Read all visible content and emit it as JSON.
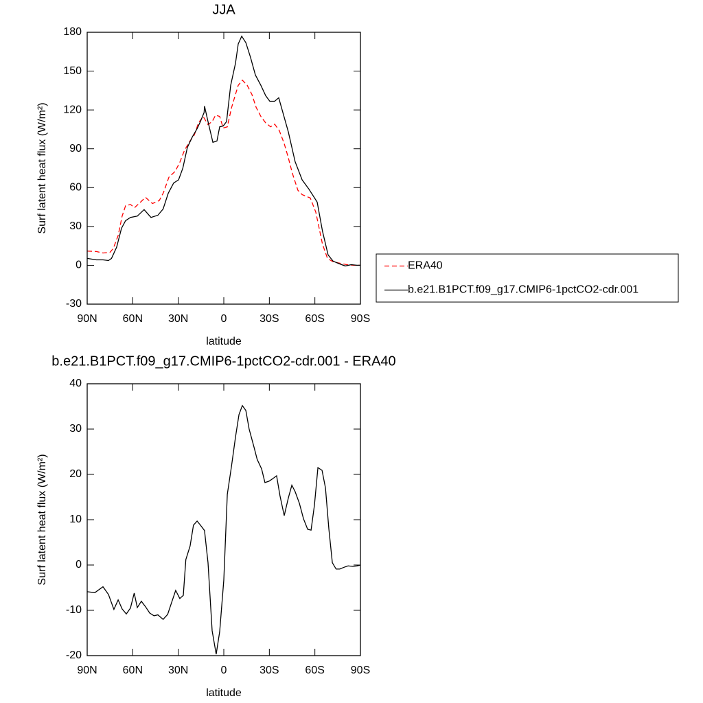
{
  "chart_data": [
    {
      "type": "line",
      "title": "JJA",
      "xlabel": "latitude",
      "ylabel": "Surf latent heat flux (W/m²)",
      "xlim": [
        90,
        -90
      ],
      "xticks": [
        {
          "value": 90,
          "label": "90N"
        },
        {
          "value": 60,
          "label": "60N"
        },
        {
          "value": 30,
          "label": "30N"
        },
        0,
        {
          "value": -30,
          "label": "30S"
        },
        {
          "value": -60,
          "label": "60S"
        },
        {
          "value": -90,
          "label": "90S"
        }
      ],
      "ylim": [
        -30,
        180
      ],
      "yticks": [
        -30,
        0,
        30,
        60,
        90,
        120,
        150,
        180
      ],
      "legend": "right",
      "series": [
        {
          "name": "ERA40",
          "color": "#ff0000",
          "line_style": "dashed",
          "x": [
            90,
            84,
            79.6,
            75,
            72.8,
            69.6,
            67,
            64.7,
            61.5,
            58.8,
            54.7,
            51.6,
            47,
            42.5,
            39.8,
            36.2,
            32,
            29,
            26,
            22.6,
            19.4,
            16.7,
            13.6,
            10.4,
            7.7,
            5.4,
            2.7,
            0.4,
            -2.3,
            -5,
            -7.7,
            -9.5,
            -12.2,
            -15.4,
            -18.5,
            -21.3,
            -24.4,
            -27.6,
            -30.8,
            -33.5,
            -36.6,
            -39.8,
            -42.5,
            -45.2,
            -48.8,
            -51.6,
            -57,
            -60.6,
            -65,
            -68.3,
            -72,
            -76.4,
            -80.9,
            -85.5,
            -90
          ],
          "values": [
            11,
            10.6,
            9.5,
            10,
            13,
            23,
            38,
            46,
            47,
            44.5,
            49,
            52.5,
            47.7,
            50,
            56,
            68,
            72.6,
            79.5,
            88.5,
            95.4,
            100.7,
            110,
            115,
            108.7,
            111,
            116,
            115,
            106,
            107,
            121.4,
            132,
            139,
            143,
            139,
            132,
            122,
            115,
            110,
            107,
            109,
            104,
            94,
            83,
            71,
            58,
            54.6,
            52,
            41,
            16.4,
            5.3,
            2.7,
            1.6,
            0.5,
            0,
            0
          ]
        },
        {
          "name": "b.e21.B1PCT.f09_g17.CMIP6-1pctCO2-cdr.001",
          "color": "#000000",
          "line_style": "solid",
          "x": [
            90,
            84,
            79.6,
            76,
            74,
            70.6,
            67.4,
            64.7,
            61.5,
            57,
            52.5,
            48,
            43.4,
            40,
            36.6,
            33,
            29.8,
            27,
            24,
            20.8,
            17.6,
            15.4,
            13,
            12.7,
            10.4,
            7.2,
            4.5,
            2.7,
            0.4,
            -1.8,
            -4.5,
            -7.7,
            -9.5,
            -11.8,
            -14.5,
            -17.6,
            -20.8,
            -24.4,
            -27.6,
            -30.3,
            -33.5,
            -36.2,
            -39.4,
            -42.5,
            -47,
            -51.6,
            -56,
            -61.5,
            -65,
            -68.7,
            -72,
            -76.4,
            -80,
            -84,
            -87.8,
            -90
          ],
          "values": [
            5.3,
            4.2,
            4.2,
            3.7,
            5.3,
            14,
            28.6,
            34.5,
            37,
            38,
            43,
            37,
            38.7,
            43.5,
            55.7,
            63.6,
            66,
            75,
            91,
            99,
            105.5,
            111,
            118,
            123,
            111,
            95,
            96,
            107,
            107.6,
            111,
            139,
            156,
            171,
            177,
            172,
            160.6,
            147,
            139,
            131,
            126.7,
            126.7,
            129.4,
            116,
            103,
            80,
            66,
            59,
            48.8,
            26.5,
            8,
            3.2,
            1,
            -0.5,
            0.5,
            0,
            0
          ]
        }
      ]
    },
    {
      "type": "line",
      "title": "b.e21.B1PCT.f09_g17.CMIP6-1pctCO2-cdr.001 - ERA40",
      "xlabel": "latitude",
      "ylabel": "Surf latent heat flux (W/m²)",
      "xlim": [
        90,
        -90
      ],
      "xticks": [
        {
          "value": 90,
          "label": "90N"
        },
        {
          "value": 60,
          "label": "60N"
        },
        {
          "value": 30,
          "label": "30N"
        },
        0,
        {
          "value": -30,
          "label": "30S"
        },
        {
          "value": -60,
          "label": "60S"
        },
        {
          "value": -90,
          "label": "90S"
        }
      ],
      "ylim": [
        -20,
        40
      ],
      "yticks": [
        -20,
        -10,
        0,
        10,
        20,
        30,
        40
      ],
      "series": [
        {
          "color": "#000000",
          "line_style": "solid",
          "x": [
            90,
            85,
            79.6,
            76,
            72.4,
            69.6,
            67,
            64.2,
            61.5,
            59,
            57,
            54.3,
            51.6,
            48.8,
            46,
            43.4,
            40,
            37,
            34.4,
            31.7,
            29,
            26.7,
            25,
            22.2,
            20,
            17.6,
            15.4,
            12.7,
            10.4,
            7.7,
            5,
            2.7,
            0,
            -2.3,
            -5,
            -7.7,
            -10,
            -12.2,
            -14.5,
            -16.7,
            -20,
            -22,
            -24.9,
            -27.1,
            -29.8,
            -32,
            -34.8,
            -37,
            -39.8,
            -42.5,
            -44.8,
            -47,
            -49.8,
            -52.5,
            -55.2,
            -57.5,
            -59.7,
            -62,
            -64.7,
            -67,
            -69.2,
            -71.5,
            -74,
            -76.4,
            -79.2,
            -81.9,
            -85,
            -87.8,
            -90
          ],
          "values": [
            -5.9,
            -6.1,
            -4.8,
            -6.5,
            -9.8,
            -7.7,
            -9.7,
            -10.8,
            -9.5,
            -6.2,
            -9.4,
            -8,
            -9.2,
            -10.6,
            -11.2,
            -11,
            -12,
            -10.9,
            -8.3,
            -5.6,
            -7.4,
            -6.7,
            1.2,
            4.2,
            8.8,
            9.7,
            8.8,
            7.6,
            0.5,
            -14.5,
            -19.7,
            -14.7,
            -3.3,
            15.6,
            21.7,
            28.2,
            33.2,
            35.2,
            34.1,
            30,
            25.9,
            23.3,
            21.2,
            18.2,
            18.5,
            19,
            19.7,
            15.3,
            10.9,
            14.8,
            17.6,
            16.2,
            13.6,
            10.2,
            7.9,
            7.7,
            13.2,
            21.5,
            20.9,
            17,
            8,
            0.5,
            -0.9,
            -0.9,
            -0.5,
            -0.2,
            -0.3,
            -0.2,
            0
          ]
        }
      ]
    }
  ]
}
